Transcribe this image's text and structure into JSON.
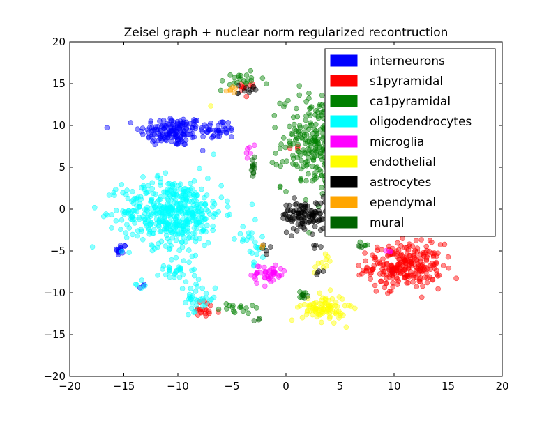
{
  "chart_data": {
    "type": "scatter",
    "title": "Zeisel graph + nuclear norm regularized recontruction",
    "xlabel": "",
    "ylabel": "",
    "xlim": [
      -20,
      20
    ],
    "ylim": [
      -20,
      20
    ],
    "xticks": [
      -20,
      -15,
      -10,
      -5,
      0,
      5,
      10,
      15,
      20
    ],
    "yticks": [
      -20,
      -15,
      -10,
      -5,
      0,
      5,
      10,
      15,
      20
    ],
    "xtick_labels": [
      "−20",
      "−15",
      "−10",
      "−5",
      "0",
      "5",
      "10",
      "15",
      "20"
    ],
    "ytick_labels": [
      "−20",
      "−15",
      "−10",
      "−5",
      "0",
      "5",
      "10",
      "15",
      "20"
    ],
    "grid": false,
    "legend_position": "top-right",
    "point_alpha": 0.45,
    "series": [
      {
        "name": "interneurons",
        "color": "#0000ff",
        "clusters": [
          {
            "cx": -10.5,
            "cy": 9.3,
            "sx": 1.5,
            "sy": 0.9,
            "n": 150
          },
          {
            "cx": -6.3,
            "cy": 9.5,
            "sx": 0.9,
            "sy": 0.6,
            "n": 40
          },
          {
            "cx": -15.3,
            "cy": -4.9,
            "sx": 0.25,
            "sy": 0.4,
            "n": 15
          },
          {
            "cx": -13.2,
            "cy": -9.3,
            "sx": 0.2,
            "sy": 0.2,
            "n": 3
          },
          {
            "cx": 9.5,
            "cy": -7.5,
            "sx": 0.3,
            "sy": 0.3,
            "n": 3
          }
        ]
      },
      {
        "name": "s1pyramidal",
        "color": "#ff0000",
        "clusters": [
          {
            "cx": 11.0,
            "cy": -6.8,
            "sx": 1.7,
            "sy": 1.3,
            "n": 260
          },
          {
            "cx": -7.5,
            "cy": -12.2,
            "sx": 0.7,
            "sy": 0.6,
            "n": 18
          },
          {
            "cx": -3.5,
            "cy": 14.3,
            "sx": 0.6,
            "sy": 0.5,
            "n": 10
          },
          {
            "cx": 0.8,
            "cy": 7.5,
            "sx": 0.3,
            "sy": 0.3,
            "n": 3
          }
        ]
      },
      {
        "name": "ca1pyramidal",
        "color": "#008000",
        "clusters": [
          {
            "cx": 3.0,
            "cy": 8.0,
            "sx": 1.7,
            "sy": 2.8,
            "n": 280
          },
          {
            "cx": -4.3,
            "cy": 15.3,
            "sx": 1.1,
            "sy": 0.5,
            "n": 20
          },
          {
            "cx": -4.5,
            "cy": -11.8,
            "sx": 0.8,
            "sy": 0.4,
            "n": 16
          },
          {
            "cx": 1.5,
            "cy": -10.3,
            "sx": 0.3,
            "sy": 0.25,
            "n": 6
          },
          {
            "cx": 7.2,
            "cy": -4.5,
            "sx": 0.3,
            "sy": 0.3,
            "n": 4
          }
        ]
      },
      {
        "name": "oligodendrocytes",
        "color": "#00ffff",
        "clusters": [
          {
            "cx": -10.5,
            "cy": -0.3,
            "sx": 2.3,
            "sy": 2.0,
            "n": 480
          },
          {
            "cx": -8.3,
            "cy": -10.8,
            "sx": 0.9,
            "sy": 1.0,
            "n": 35
          },
          {
            "cx": -10.3,
            "cy": -7.2,
            "sx": 0.8,
            "sy": 0.6,
            "n": 30
          },
          {
            "cx": -3.0,
            "cy": -4.3,
            "sx": 0.8,
            "sy": 1.2,
            "n": 25
          },
          {
            "cx": -13.5,
            "cy": -9.0,
            "sx": 0.3,
            "sy": 0.3,
            "n": 5
          }
        ]
      },
      {
        "name": "microglia",
        "color": "#ff00ff",
        "clusters": [
          {
            "cx": -1.6,
            "cy": -7.8,
            "sx": 0.8,
            "sy": 0.6,
            "n": 45
          },
          {
            "cx": -3.4,
            "cy": 7.0,
            "sx": 0.3,
            "sy": 0.5,
            "n": 6
          },
          {
            "cx": 9.4,
            "cy": -4.8,
            "sx": 0.3,
            "sy": 0.3,
            "n": 3
          }
        ]
      },
      {
        "name": "endothelial",
        "color": "#ffff00",
        "clusters": [
          {
            "cx": 3.5,
            "cy": -11.8,
            "sx": 1.0,
            "sy": 0.8,
            "n": 90
          },
          {
            "cx": 3.3,
            "cy": -6.8,
            "sx": 0.6,
            "sy": 0.6,
            "n": 10
          },
          {
            "cx": -6.8,
            "cy": 12.5,
            "sx": 0.2,
            "sy": 0.2,
            "n": 1
          }
        ]
      },
      {
        "name": "astrocytes",
        "color": "#000000",
        "clusters": [
          {
            "cx": 1.8,
            "cy": -0.8,
            "sx": 1.1,
            "sy": 0.9,
            "n": 110
          },
          {
            "cx": -3.8,
            "cy": 14.3,
            "sx": 0.6,
            "sy": 0.3,
            "n": 10
          },
          {
            "cx": -2.0,
            "cy": -4.8,
            "sx": 0.3,
            "sy": 0.3,
            "n": 5
          },
          {
            "cx": 3.2,
            "cy": -7.5,
            "sx": 0.2,
            "sy": 0.2,
            "n": 4
          },
          {
            "cx": 2.8,
            "cy": -4.3,
            "sx": 0.2,
            "sy": 0.3,
            "n": 4
          }
        ]
      },
      {
        "name": "ependymal",
        "color": "#ffa500",
        "clusters": [
          {
            "cx": -5.4,
            "cy": 14.3,
            "sx": 0.4,
            "sy": 0.3,
            "n": 6
          },
          {
            "cx": -2.0,
            "cy": -4.5,
            "sx": 0.3,
            "sy": 0.3,
            "n": 2
          }
        ]
      },
      {
        "name": "mural",
        "color": "#006400",
        "clusters": [
          {
            "cx": -3.0,
            "cy": 5.0,
            "sx": 0.12,
            "sy": 0.5,
            "n": 12
          },
          {
            "cx": -2.5,
            "cy": -13.3,
            "sx": 0.15,
            "sy": 0.15,
            "n": 3
          },
          {
            "cx": 1.5,
            "cy": -10.3,
            "sx": 0.25,
            "sy": 0.2,
            "n": 5
          },
          {
            "cx": 6.8,
            "cy": -4.5,
            "sx": 0.2,
            "sy": 0.2,
            "n": 3
          }
        ]
      }
    ]
  }
}
